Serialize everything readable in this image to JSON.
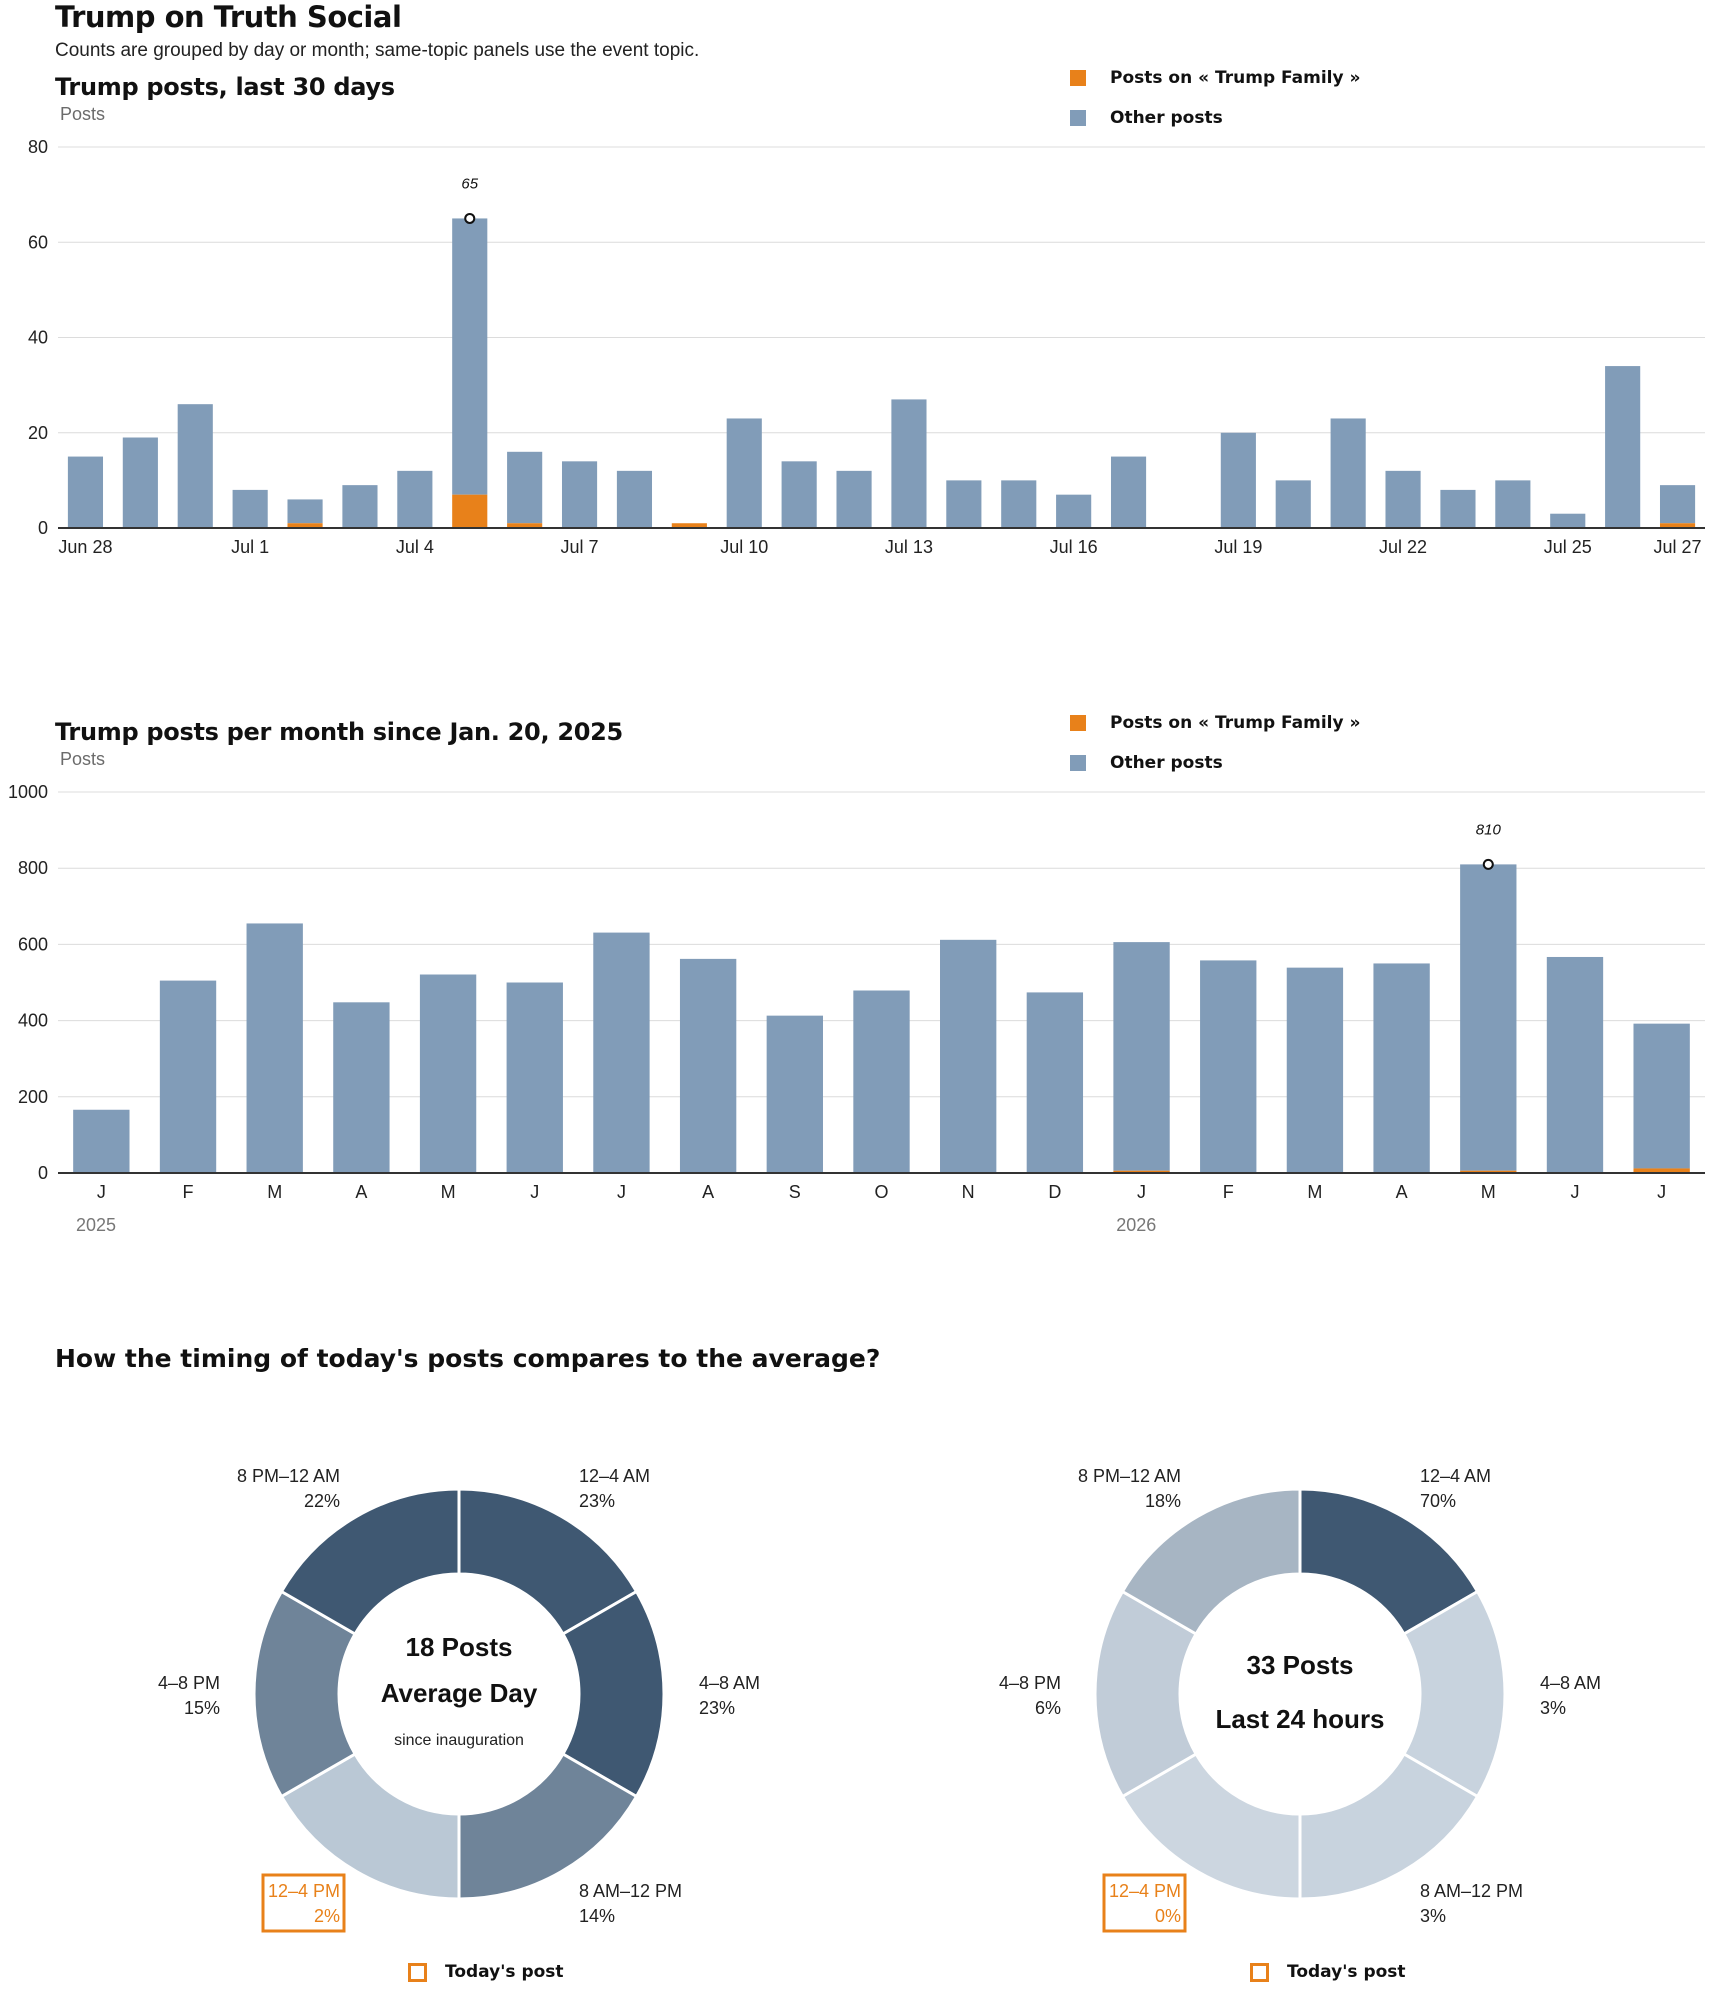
{
  "header": {
    "title": "Trump on Truth Social",
    "subtitle": "Counts are grouped by day or month; same-topic panels use the event topic."
  },
  "colors": {
    "topic": "#e8811a",
    "other": "#819cb8",
    "slice_dark": "#3f5872",
    "slice_mid": "#6f8499",
    "slice_light": "#bac8d5",
    "slice_pale": "#c8d3de",
    "slice_grey": "#a7b5c3"
  },
  "legend": {
    "topic_label": "Posts on « Trump Family »",
    "other_label": "Other posts"
  },
  "chart_data": [
    {
      "type": "bar",
      "stacked": true,
      "title": "Trump posts, last 30 days",
      "ylabel": "Posts",
      "ylim": [
        0,
        80
      ],
      "yticks": [
        0,
        20,
        40,
        60,
        80
      ],
      "categories": [
        "Jun 28",
        "Jun 29",
        "Jun 30",
        "Jul 1",
        "Jul 2",
        "Jul 3",
        "Jul 4",
        "Jul 5",
        "Jul 6",
        "Jul 7",
        "Jul 8",
        "Jul 9",
        "Jul 10",
        "Jul 11",
        "Jul 12",
        "Jul 13",
        "Jul 14",
        "Jul 15",
        "Jul 16",
        "Jul 17",
        "Jul 18",
        "Jul 19",
        "Jul 20",
        "Jul 21",
        "Jul 22",
        "Jul 23",
        "Jul 24",
        "Jul 25",
        "Jul 26",
        "Jul 27"
      ],
      "tick_labels": [
        "Jun 28",
        "",
        "",
        "Jul 1",
        "",
        "",
        "Jul 4",
        "",
        "",
        "Jul 7",
        "",
        "",
        "Jul 10",
        "",
        "",
        "Jul 13",
        "",
        "",
        "Jul 16",
        "",
        "",
        "Jul 19",
        "",
        "",
        "Jul 22",
        "",
        "",
        "Jul 25",
        "",
        "Jul 27"
      ],
      "series": [
        {
          "name": "Posts on « Trump Family »",
          "values": [
            0,
            0,
            0,
            0,
            1,
            0,
            0,
            7,
            1,
            0,
            0,
            1,
            0,
            0,
            0,
            0,
            0,
            0,
            0,
            0,
            0,
            0,
            0,
            0,
            0,
            0,
            0,
            0,
            0,
            1
          ]
        },
        {
          "name": "Other posts",
          "values": [
            15,
            19,
            26,
            8,
            5,
            9,
            12,
            58,
            15,
            14,
            12,
            0,
            23,
            14,
            12,
            27,
            10,
            10,
            7,
            15,
            0,
            20,
            10,
            23,
            12,
            8,
            10,
            3,
            34,
            8
          ]
        }
      ],
      "annotation": {
        "index": 7,
        "label": "65"
      }
    },
    {
      "type": "bar",
      "stacked": true,
      "title": "Trump posts per month since Jan. 20, 2025",
      "ylabel": "Posts",
      "ylim": [
        0,
        1000
      ],
      "yticks": [
        0,
        200,
        400,
        600,
        800,
        1000
      ],
      "categories": [
        "J",
        "F",
        "M",
        "A",
        "M",
        "J",
        "J",
        "A",
        "S",
        "O",
        "N",
        "D",
        "J",
        "F",
        "M",
        "A",
        "M",
        "J",
        "J"
      ],
      "year_labels": [
        {
          "index": 0,
          "label": "2025"
        },
        {
          "index": 12,
          "label": "2026"
        }
      ],
      "series": [
        {
          "name": "Posts on « Trump Family »",
          "values": [
            0,
            0,
            0,
            0,
            0,
            0,
            0,
            0,
            0,
            0,
            0,
            0,
            6,
            0,
            0,
            0,
            6,
            0,
            12
          ]
        },
        {
          "name": "Other posts",
          "values": [
            166,
            505,
            655,
            448,
            521,
            500,
            631,
            562,
            413,
            479,
            612,
            474,
            600,
            558,
            539,
            550,
            804,
            567,
            380
          ]
        }
      ],
      "annotation": {
        "index": 16,
        "label": "810"
      }
    },
    {
      "type": "pie",
      "donut": true,
      "center": {
        "line1": "18 Posts",
        "line2": "Average Day",
        "line3": "since inauguration"
      },
      "slices": [
        {
          "label": "12–4 AM",
          "value": "23%",
          "color": "#3f5872"
        },
        {
          "label": "4–8 AM",
          "value": "23%",
          "color": "#3f5872"
        },
        {
          "label": "8 AM–12 PM",
          "value": "14%",
          "color": "#6f8499"
        },
        {
          "label": "12–4 PM",
          "value": "2%",
          "color": "#bac8d5",
          "highlight": true
        },
        {
          "label": "4–8 PM",
          "value": "15%",
          "color": "#6f8499"
        },
        {
          "label": "8 PM–12 AM",
          "value": "22%",
          "color": "#3f5872"
        }
      ]
    },
    {
      "type": "pie",
      "donut": true,
      "center": {
        "line1": "33 Posts",
        "line2": "Last 24 hours",
        "line3": ""
      },
      "slices": [
        {
          "label": "12–4 AM",
          "value": "70%",
          "color": "#3f5872"
        },
        {
          "label": "4–8 AM",
          "value": "3%",
          "color": "#c8d3de"
        },
        {
          "label": "8 AM–12 PM",
          "value": "3%",
          "color": "#c8d3de"
        },
        {
          "label": "12–4 PM",
          "value": "0%",
          "color": "#ccd6e0",
          "highlight": true
        },
        {
          "label": "4–8 PM",
          "value": "6%",
          "color": "#c1ccd8"
        },
        {
          "label": "8 PM–12 AM",
          "value": "18%",
          "color": "#a7b5c3"
        }
      ]
    }
  ],
  "timing": {
    "title": "How the timing of today's posts compares to the average?",
    "today_label": "Today's post"
  }
}
